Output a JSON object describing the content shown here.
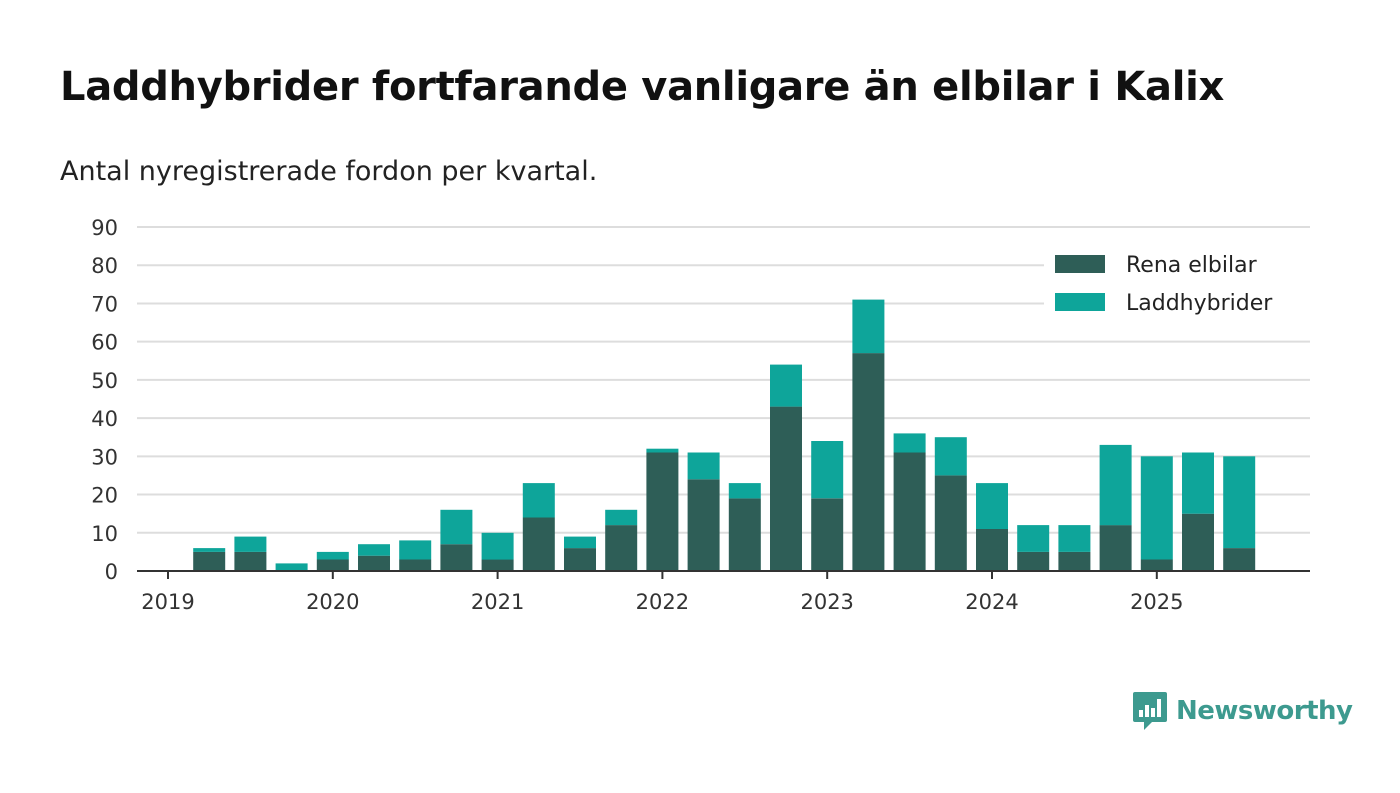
{
  "colors": {
    "rena_elbilar": "#2e5e57",
    "laddhybrider": "#0ea59a",
    "grid": "#dddddd",
    "axis": "#333333",
    "brand": "#3d9a8f"
  },
  "brand": {
    "name": "Newsworthy",
    "icon": "chart-bubble-icon"
  },
  "chart_data": {
    "type": "bar",
    "stacked": true,
    "title": "Laddhybrider fortfarande vanligare än elbilar i Kalix",
    "subtitle": "Antal nyregistrerade fordon per kvartal.",
    "xlabel": "",
    "ylabel": "",
    "ylim": [
      0,
      90
    ],
    "yticks": [
      0,
      10,
      20,
      30,
      40,
      50,
      60,
      70,
      80,
      90
    ],
    "xticks": [
      "2019",
      "2020",
      "2021",
      "2022",
      "2023",
      "2024",
      "2025"
    ],
    "grid": true,
    "legend_position": "top-right",
    "categories": [
      "2019 Q1",
      "2019 Q2",
      "2019 Q3",
      "2019 Q4",
      "2020 Q1",
      "2020 Q2",
      "2020 Q3",
      "2020 Q4",
      "2021 Q1",
      "2021 Q2",
      "2021 Q3",
      "2021 Q4",
      "2022 Q1",
      "2022 Q2",
      "2022 Q3",
      "2022 Q4",
      "2023 Q1",
      "2023 Q2",
      "2023 Q3",
      "2023 Q4",
      "2024 Q1",
      "2024 Q2",
      "2024 Q3",
      "2024 Q4",
      "2025 Q1",
      "2025 Q2",
      "2025 Q3"
    ],
    "series": [
      {
        "name": "Rena elbilar",
        "values": [
          0,
          5,
          5,
          0,
          3,
          4,
          3,
          7,
          3,
          14,
          6,
          12,
          31,
          24,
          19,
          43,
          19,
          57,
          31,
          25,
          11,
          5,
          5,
          12,
          3,
          15,
          6
        ]
      },
      {
        "name": "Laddhybrider",
        "values": [
          0,
          1,
          4,
          2,
          2,
          3,
          5,
          9,
          7,
          9,
          3,
          4,
          1,
          7,
          4,
          11,
          15,
          14,
          5,
          10,
          12,
          7,
          7,
          21,
          27,
          16,
          24
        ]
      }
    ]
  }
}
